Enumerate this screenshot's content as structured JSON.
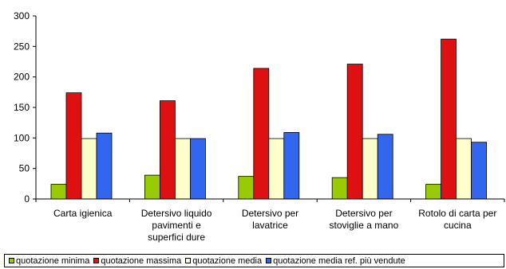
{
  "chart_data": {
    "type": "bar",
    "title": "",
    "xlabel": "",
    "ylabel": "",
    "ylim": [
      0,
      300
    ],
    "yticks": [
      0,
      50,
      100,
      150,
      200,
      250,
      300
    ],
    "grid": false,
    "legend_position": "bottom",
    "categories": [
      [
        "Carta igienica"
      ],
      [
        "Detersivo liquido",
        "pavimenti e",
        "superfici dure"
      ],
      [
        "Detersivo per",
        "lavatrice"
      ],
      [
        "Detersivo per",
        "stoviglie a mano"
      ],
      [
        "Rotolo di carta per",
        "cucina"
      ]
    ],
    "series": [
      {
        "name": "quotazione minima",
        "color": "#99cc00",
        "values": [
          24,
          39,
          37,
          35,
          24
        ]
      },
      {
        "name": "quotazione massima",
        "color": "#dd1111",
        "values": [
          174,
          161,
          214,
          221,
          262
        ]
      },
      {
        "name": "quotazione media",
        "color": "#ffffcc",
        "values": [
          99,
          99,
          99,
          99,
          99
        ]
      },
      {
        "name": "quotazione media ref. più vendute",
        "color": "#3366ee",
        "values": [
          108,
          99,
          109,
          106,
          93
        ]
      }
    ]
  }
}
